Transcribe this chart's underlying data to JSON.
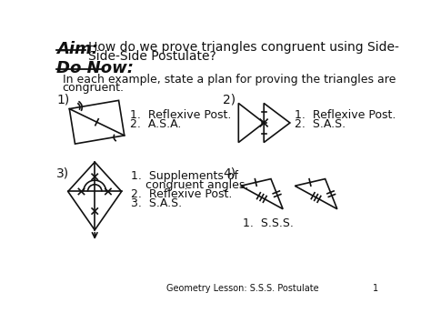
{
  "aim_label": "Aim:",
  "aim_text1": "How do we prove triangles congruent using Side-",
  "aim_text2": "Side-Side Postulate?",
  "do_now": "Do Now:",
  "intro1": "In each example, state a plan for proving the triangles are",
  "intro2": "congruent.",
  "n1": "1)",
  "n2": "2)",
  "n3": "3)",
  "n4": "4)",
  "steps1": [
    "1.  Reflexive Post.",
    "2.  A.S.A."
  ],
  "steps2": [
    "1.  Reflexive Post.",
    "2.  S.A.S."
  ],
  "steps3": [
    "1.  Supplements of",
    "    congruent angles.",
    "2.  Reflexive Post.",
    "3.  S.A.S."
  ],
  "steps4": [
    "1.  S.S.S."
  ],
  "footer": "Geometry Lesson: S.S.S. Postulate",
  "page_num": "1",
  "bg_color": "#ffffff",
  "text_color": "#111111"
}
